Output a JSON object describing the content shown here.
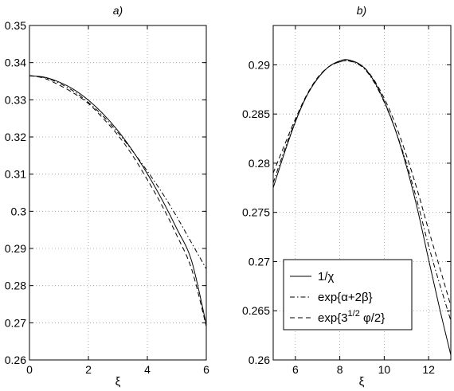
{
  "chart_data": [
    {
      "type": "line",
      "title": "a)",
      "xlabel": "ξ",
      "ylabel": "",
      "xlim": [
        0,
        6
      ],
      "ylim": [
        0.26,
        0.35
      ],
      "xticks": [
        "0",
        "2",
        "4",
        "6"
      ],
      "yticks": [
        "0.26",
        "0.27",
        "0.28",
        "0.29",
        "0.3",
        "0.31",
        "0.32",
        "0.33",
        "0.34",
        "0.35"
      ],
      "grid": true,
      "series": [
        {
          "style": "solid",
          "x": [
            0,
            0.5,
            1,
            1.5,
            2,
            2.5,
            3,
            3.5,
            4,
            4.5,
            5,
            5.5,
            6
          ],
          "y": [
            0.3365,
            0.3361,
            0.3348,
            0.3328,
            0.3299,
            0.3262,
            0.3217,
            0.3163,
            0.3101,
            0.3031,
            0.2953,
            0.2867,
            0.2695
          ]
        },
        {
          "style": "dashdot",
          "x": [
            0,
            0.5,
            1,
            1.5,
            2,
            2.5,
            3,
            3.5,
            4,
            4.5,
            5,
            5.5,
            6
          ],
          "y": [
            0.3365,
            0.336,
            0.3345,
            0.3323,
            0.3293,
            0.3256,
            0.3212,
            0.3162,
            0.3108,
            0.305,
            0.2985,
            0.2915,
            0.2845
          ]
        },
        {
          "style": "dashed",
          "x": [
            0,
            0.5,
            1,
            1.5,
            2,
            2.5,
            3,
            3.5,
            4,
            4.5,
            5,
            5.5,
            6
          ],
          "y": [
            0.3365,
            0.3358,
            0.334,
            0.3318,
            0.329,
            0.325,
            0.3205,
            0.315,
            0.3085,
            0.3015,
            0.2935,
            0.2845,
            0.269
          ]
        }
      ]
    },
    {
      "type": "line",
      "title": "b)",
      "xlabel": "ξ",
      "ylabel": "",
      "xlim": [
        5,
        13
      ],
      "ylim": [
        0.26,
        0.294
      ],
      "xticks": [
        "6",
        "8",
        "10",
        "12"
      ],
      "yticks": [
        "0.26",
        "0.265",
        "0.27",
        "0.275",
        "0.28",
        "0.285",
        "0.29"
      ],
      "grid": true,
      "legend": {
        "position": "lower-left",
        "entries": [
          "1/χ",
          "exp{α+2β}",
          "exp{3^(1/2) φ/2}"
        ]
      },
      "series": [
        {
          "name": "1/χ",
          "style": "solid",
          "x": [
            5,
            5.5,
            6,
            6.5,
            7,
            7.5,
            8,
            8.4,
            9,
            9.5,
            10,
            10.5,
            11,
            11.5,
            12,
            12.5,
            13
          ],
          "y": [
            0.2775,
            0.281,
            0.2842,
            0.2868,
            0.2886,
            0.2898,
            0.2904,
            0.2905,
            0.2899,
            0.2885,
            0.2863,
            0.2834,
            0.2797,
            0.2753,
            0.2702,
            0.2652,
            0.2605
          ]
        },
        {
          "name": "exp{α+2β}",
          "style": "dashdot",
          "x": [
            5,
            5.5,
            6,
            6.5,
            7,
            7.5,
            8,
            8.4,
            9,
            9.5,
            10,
            10.5,
            11,
            11.5,
            12,
            12.5,
            13
          ],
          "y": [
            0.278,
            0.2813,
            0.2843,
            0.2868,
            0.2886,
            0.2898,
            0.2903,
            0.2904,
            0.2898,
            0.2884,
            0.2862,
            0.2834,
            0.28,
            0.276,
            0.2716,
            0.2677,
            0.264
          ]
        },
        {
          "name": "exp{3^(1/2) φ/2}",
          "style": "dashed",
          "x": [
            5,
            5.5,
            6,
            6.5,
            7,
            7.5,
            8,
            8.4,
            9,
            9.5,
            10,
            10.5,
            11,
            11.5,
            12,
            12.5,
            13
          ],
          "y": [
            0.279,
            0.2818,
            0.2845,
            0.2869,
            0.2887,
            0.2898,
            0.2903,
            0.2904,
            0.2899,
            0.2886,
            0.2866,
            0.284,
            0.2808,
            0.2772,
            0.2732,
            0.2694,
            0.2655
          ]
        }
      ]
    }
  ]
}
